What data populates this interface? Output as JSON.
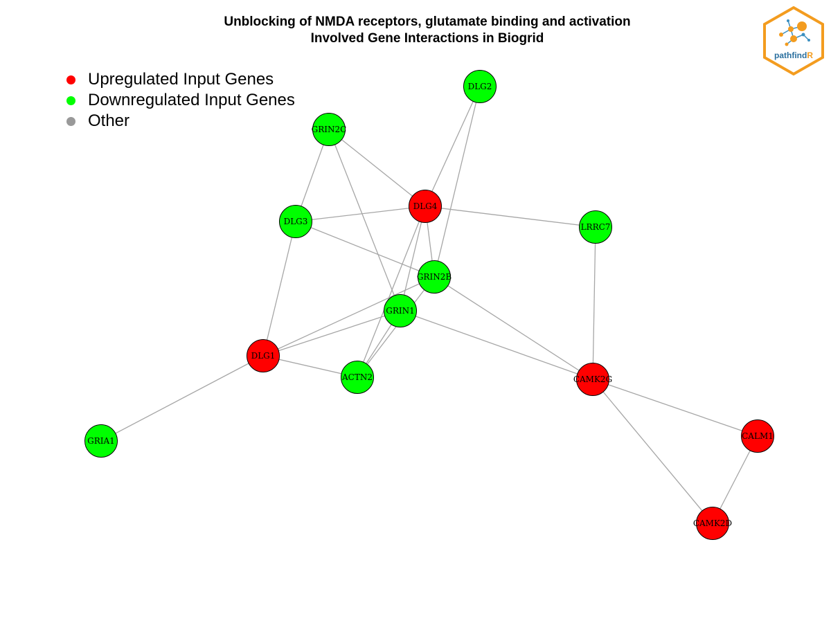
{
  "title": {
    "line1": "Unblocking of NMDA receptors, glutamate binding and activation",
    "line2": "Involved Gene Interactions in Biogrid"
  },
  "legend": [
    {
      "label": "Upregulated Input Genes",
      "color": "#ff0000"
    },
    {
      "label": "Downregulated Input Genes",
      "color": "#00ff00"
    },
    {
      "label": "Other",
      "color": "#999999"
    }
  ],
  "logo": {
    "text_main": "pathfind",
    "text_accent": "R"
  },
  "colors": {
    "up": "#ff0000",
    "down": "#00ff00",
    "other": "#999999",
    "edge": "#a6a6a6"
  },
  "nodes": [
    {
      "id": "DLG2",
      "status": "down"
    },
    {
      "id": "GRIN2C",
      "status": "down"
    },
    {
      "id": "DLG4",
      "status": "up"
    },
    {
      "id": "DLG3",
      "status": "down"
    },
    {
      "id": "LRRC7",
      "status": "down"
    },
    {
      "id": "GRIN2B",
      "status": "down"
    },
    {
      "id": "GRIN1",
      "status": "down"
    },
    {
      "id": "DLG1",
      "status": "up"
    },
    {
      "id": "ACTN2",
      "status": "down"
    },
    {
      "id": "CAMK2G",
      "status": "up"
    },
    {
      "id": "GRIA1",
      "status": "down"
    },
    {
      "id": "CALM1",
      "status": "up"
    },
    {
      "id": "CAMK2D",
      "status": "up"
    }
  ],
  "edges": [
    [
      "DLG2",
      "DLG4"
    ],
    [
      "DLG2",
      "GRIN2B"
    ],
    [
      "GRIN2C",
      "DLG4"
    ],
    [
      "GRIN2C",
      "DLG3"
    ],
    [
      "GRIN2C",
      "GRIN1"
    ],
    [
      "DLG4",
      "DLG3"
    ],
    [
      "DLG4",
      "LRRC7"
    ],
    [
      "DLG4",
      "GRIN2B"
    ],
    [
      "DLG4",
      "GRIN1"
    ],
    [
      "DLG4",
      "ACTN2"
    ],
    [
      "DLG3",
      "GRIN2B"
    ],
    [
      "DLG3",
      "DLG1"
    ],
    [
      "LRRC7",
      "CAMK2G"
    ],
    [
      "GRIN2B",
      "DLG1"
    ],
    [
      "GRIN2B",
      "ACTN2"
    ],
    [
      "GRIN2B",
      "CAMK2G"
    ],
    [
      "GRIN1",
      "DLG1"
    ],
    [
      "GRIN1",
      "ACTN2"
    ],
    [
      "GRIN1",
      "CAMK2G"
    ],
    [
      "DLG1",
      "ACTN2"
    ],
    [
      "DLG1",
      "GRIA1"
    ],
    [
      "CAMK2G",
      "CALM1"
    ],
    [
      "CAMK2G",
      "CAMK2D"
    ],
    [
      "CALM1",
      "CAMK2D"
    ]
  ]
}
